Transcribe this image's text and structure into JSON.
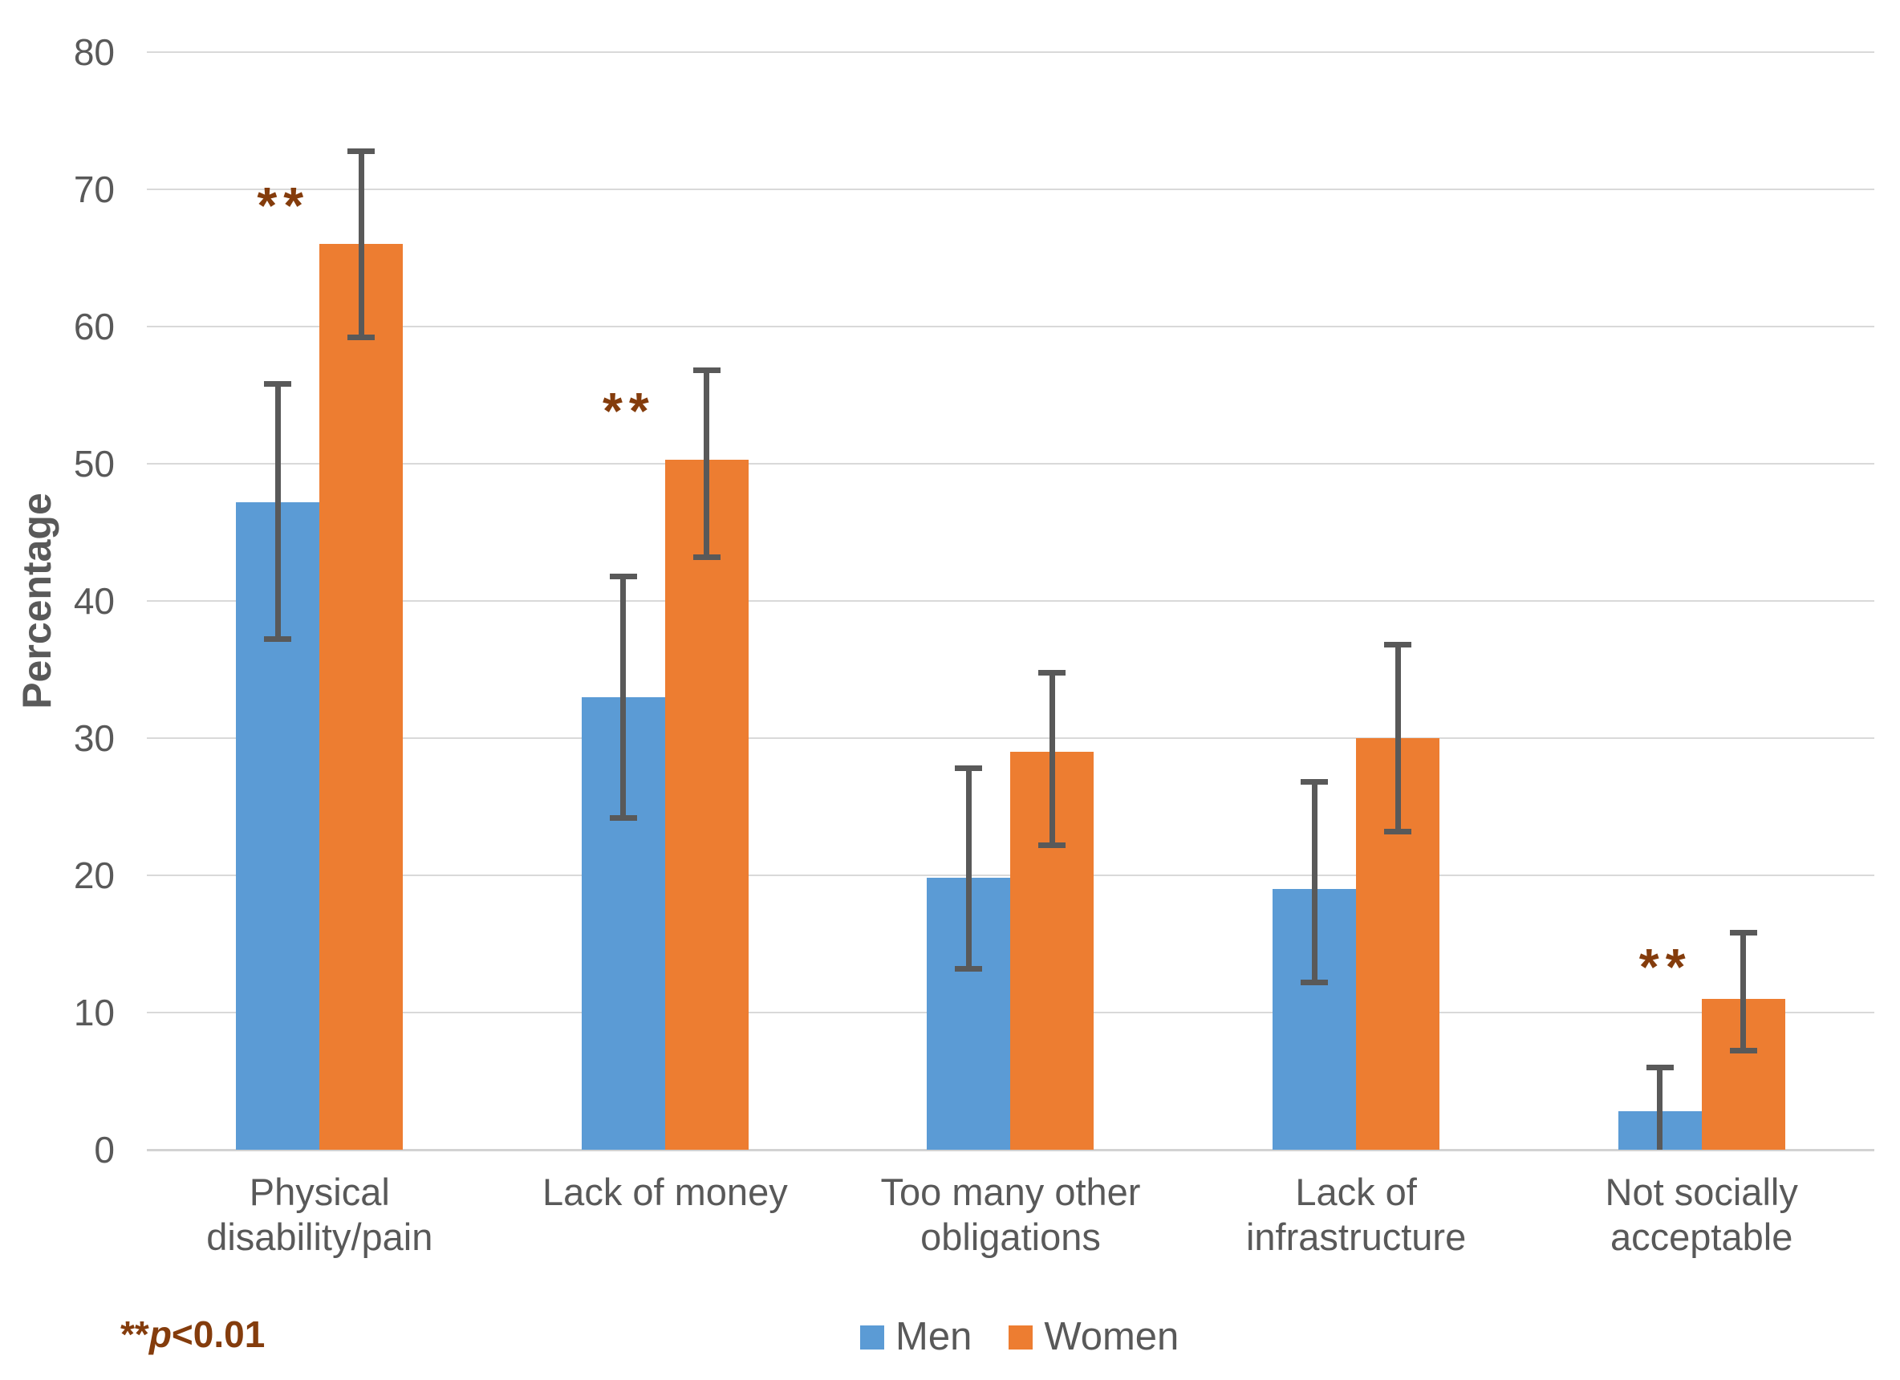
{
  "chart_data": {
    "type": "bar",
    "title": "",
    "ylabel": "Percentage",
    "xlabel": "",
    "ylim": [
      0,
      80
    ],
    "ytick_step": 10,
    "grid": "horizontal",
    "legend_position": "bottom",
    "categories": [
      "Physical disability/pain",
      "Lack of money",
      "Too many other obligations",
      "Lack of infrastructure",
      "Not socially acceptable"
    ],
    "category_label_lines": [
      [
        "Physical",
        "disability/pain"
      ],
      [
        "Lack of money"
      ],
      [
        "Too many other",
        "obligations"
      ],
      [
        "Lack of",
        "infrastructure"
      ],
      [
        "Not socially",
        "acceptable"
      ]
    ],
    "series": [
      {
        "name": "Men",
        "color": "#5B9BD5",
        "values": [
          47.2,
          33,
          19.8,
          19,
          2.8
        ],
        "err_low": [
          37,
          24,
          13,
          12,
          0
        ],
        "err_high": [
          56,
          42,
          28,
          27,
          6.2
        ]
      },
      {
        "name": "Women",
        "color": "#ED7D31",
        "values": [
          66,
          50.3,
          29,
          30,
          11
        ],
        "err_low": [
          59,
          43,
          22,
          23,
          7
        ],
        "err_high": [
          73,
          57,
          35,
          37,
          16
        ]
      }
    ],
    "significance": {
      "marker": "**",
      "color": "#843C0C",
      "flagged": [
        true,
        true,
        false,
        false,
        true
      ],
      "marker_y": [
        68.5,
        53.5,
        null,
        null,
        13
      ]
    },
    "footnote": {
      "stars": "**",
      "variable": "p",
      "comparison": "<0.01"
    },
    "style": {
      "gridline_color": "#D9D9D9",
      "axis_line_color": "#D2D2D2",
      "errorbar_color": "#595959",
      "text_color": "#595959"
    }
  }
}
